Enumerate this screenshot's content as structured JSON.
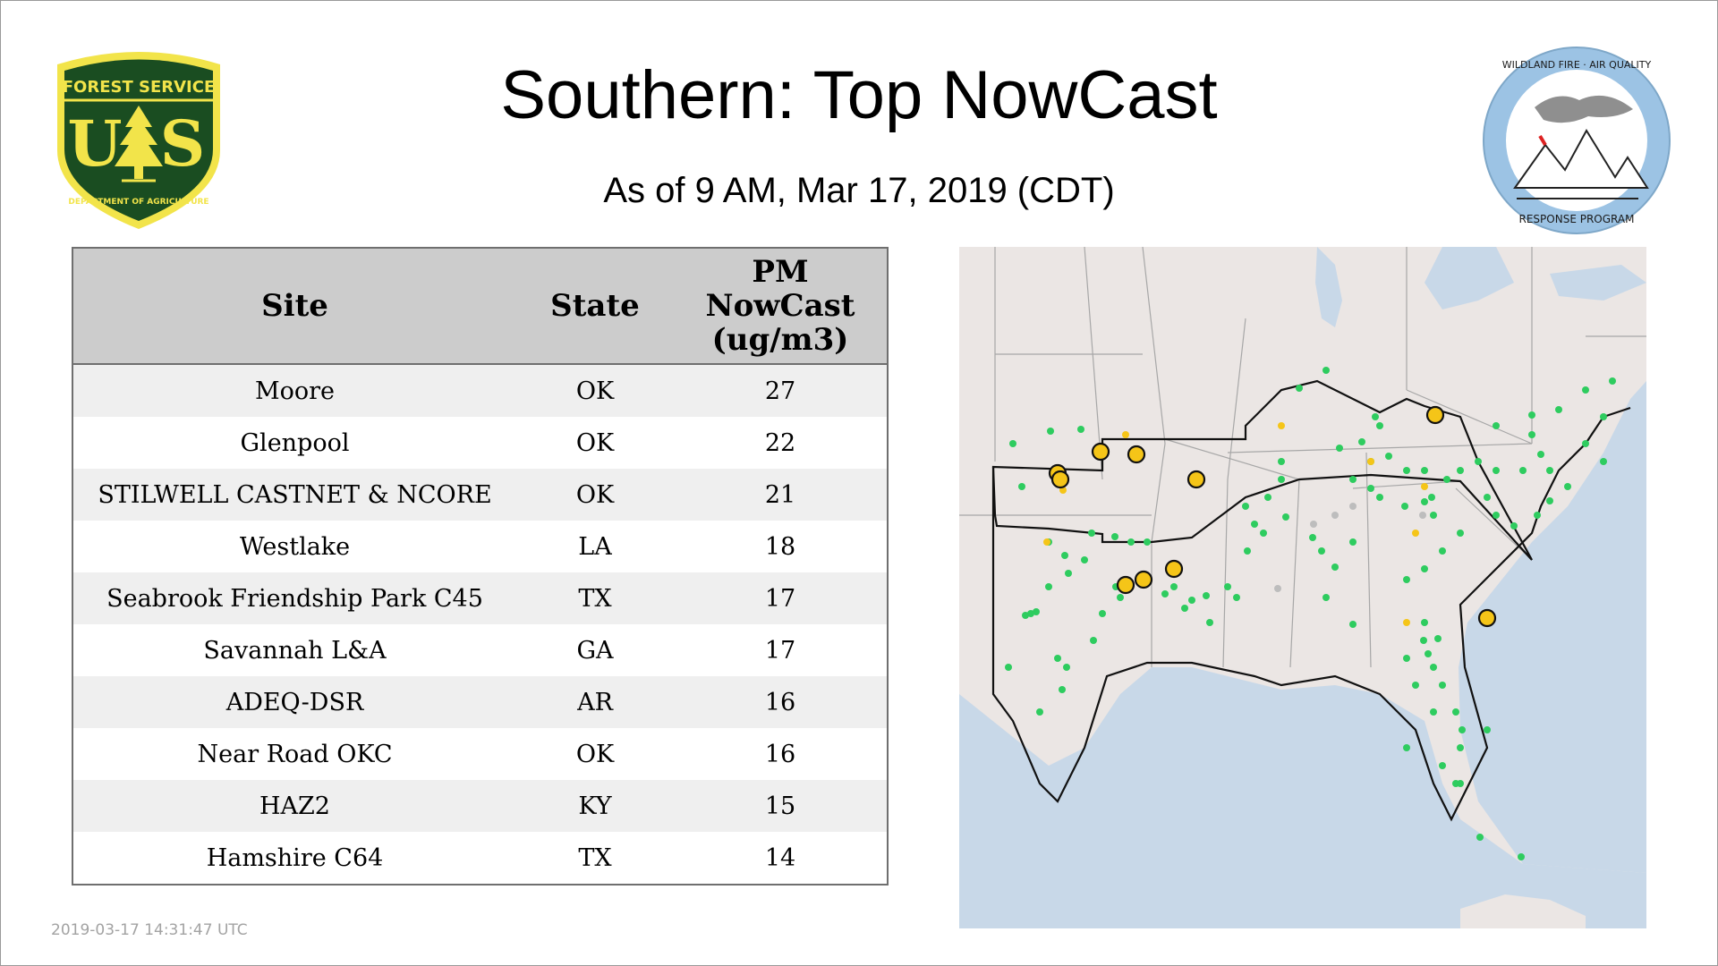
{
  "title": "Southern: Top NowCast",
  "subtitle": "As of  9 AM, Mar 17, 2019 (CDT)",
  "generated_timestamp": "2019-03-17 14:31:47 UTC",
  "logos": {
    "forest_service": {
      "top_text": "FOREST SERVICE",
      "bottom_text": "DEPARTMENT OF AGRICULTURE",
      "left_letter": "U",
      "right_letter": "S",
      "colors": {
        "green": "#1a4d21",
        "yellow": "#f2e44a"
      }
    },
    "wildland_fire": {
      "top_text": "WILDLAND FIRE · AIR QUALITY",
      "bottom_text": "RESPONSE PROGRAM",
      "colors": {
        "ring": "#9cc3e4"
      }
    }
  },
  "table": {
    "headers": {
      "site": "Site",
      "state": "State",
      "pm_line1": "PM",
      "pm_line2": "NowCast",
      "pm_line3": "(ug/m3)"
    },
    "rows": [
      {
        "site": "Moore",
        "state": "OK",
        "value": "27"
      },
      {
        "site": "Glenpool",
        "state": "OK",
        "value": "22"
      },
      {
        "site": "STILWELL CASTNET & NCORE",
        "state": "OK",
        "value": "21"
      },
      {
        "site": "Westlake",
        "state": "LA",
        "value": "18"
      },
      {
        "site": "Seabrook Friendship Park C45",
        "state": "TX",
        "value": "17"
      },
      {
        "site": "Savannah L&A",
        "state": "GA",
        "value": "17"
      },
      {
        "site": "ADEQ-DSR",
        "state": "AR",
        "value": "16"
      },
      {
        "site": "Near Road OKC",
        "state": "OK",
        "value": "16"
      },
      {
        "site": "HAZ2",
        "state": "KY",
        "value": "15"
      },
      {
        "site": "Hamshire C64",
        "state": "TX",
        "value": "14"
      }
    ]
  },
  "map": {
    "colors": {
      "land": "#ebe6e4",
      "water": "#c8d8e8",
      "border": "#a7a7a7",
      "region": "#111111",
      "good": "#2ecc5f",
      "moderate": "#f5c518",
      "no_data": "#bdbdbd"
    }
  }
}
